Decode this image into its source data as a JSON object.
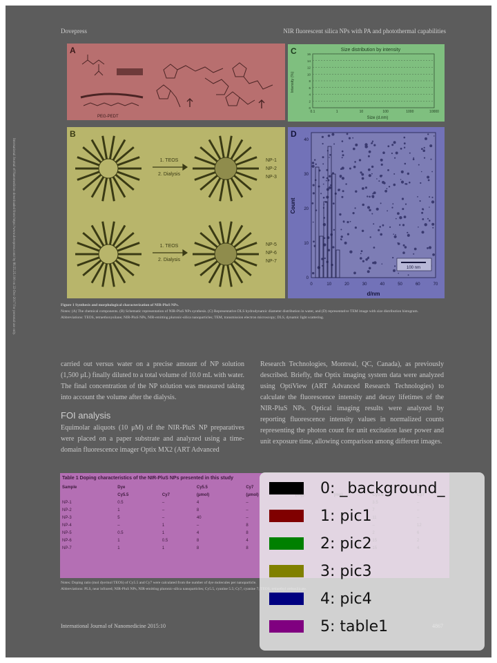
{
  "header": {
    "left": "Dovepress",
    "right": "NIR fluorescent silica NPs with PA and photothermal capabilities"
  },
  "side_note": "International Journal of Nanomedicine downloaded from https://www.dovepress.com/ by 86.55.25.100 on 22-Dec-2017 For personal use only.",
  "figure": {
    "panel_labels": [
      "A",
      "B",
      "C",
      "D"
    ],
    "pic1_text": [
      "PEG-PEDT"
    ],
    "pic2": {
      "title": "Size distribution by intensity",
      "ylabel": "Intensity (%)",
      "xlabel": "Size (d.nm)",
      "x_ticks": [
        "0.1",
        "1",
        "10",
        "100",
        "1000",
        "10000"
      ],
      "y_ticks": [
        "0",
        "2",
        "4",
        "6",
        "8",
        "10",
        "12",
        "14",
        "16"
      ]
    },
    "pic3": {
      "arrow_labels": [
        "1. TEOS",
        "2. Dialysis"
      ],
      "np_top": [
        "NP-1",
        "NP-2",
        "NP-3"
      ],
      "np_bottom": [
        "NP-5",
        "NP-6",
        "NP-7"
      ]
    },
    "pic4": {
      "ylabel": "Count",
      "xlabel": "d/nm",
      "y_ticks": [
        "0",
        "10",
        "20",
        "30",
        "40"
      ],
      "x_ticks": [
        "0",
        "10",
        "20",
        "30",
        "40",
        "50",
        "60",
        "70"
      ],
      "scale_bar": "100 nm"
    },
    "caption_title": "Figure 1 Synthesis and morphological characterization of NIR-PluS NPs.",
    "caption_body": "Notes: (A) The chemical components. (B) Schematic representation of NIR-PluS NPs synthesis. (C) Representative DLS hydrodynamic diameter distribution in water, and (D) representative TEM image with size distribution histogram.",
    "caption_abbrev": "Abbreviations: TEOS, tetraethoxysilane; NIR-PluS NPs, NIR-emitting pluronic-silica nanoparticles; TEM, transmission electron microscopy; DLS, dynamic light scattering."
  },
  "body": {
    "left_para1": "carried out versus water on a precise amount of NP solution (1,500 μL) finally diluted to a total volume of 10.0 mL with water. The final concentration of the NP solution was measured taking into account the volume after the dialysis.",
    "section_heading": "FOI analysis",
    "left_para2": "Equimolar aliquots (10 μM) of the NIR-PluS NP preparatives were placed on a paper substrate and analyzed using a time-domain fluorescence imager Optix MX2 (ART Advanced",
    "right_para": "Research Technologies, Montreal, QC, Canada), as previously described. Briefly, the Optix imaging system data were analyzed using OptiView (ART Advanced Research Technologies) to calculate the fluorescence intensity and decay lifetimes of the NIR-PluS NPs. Optical imaging results were analyzed by reporting fluorescence intensity values in normalized counts representing the photon count for unit excitation laser power and unit exposure time, allowing comparison among different images."
  },
  "table": {
    "title": "Table 1 Doping characteristics of the NIR-PluS NPs presented in this study",
    "group_headers": [
      "Sample",
      "Dye",
      "Cy5.5",
      "Cy7"
    ],
    "columns": [
      "",
      "Cy5.5",
      "Cy7",
      "(μmol)",
      "(μmol)",
      "(mg)",
      "(mg)",
      "Cy5.5",
      "Cy7"
    ],
    "rows": [
      [
        "NP-1",
        "0.5",
        "–",
        "4",
        "–",
        "",
        "",
        "3.5",
        "–"
      ],
      [
        "NP-2",
        "1",
        "–",
        "8",
        "–",
        "",
        "",
        "7",
        "–"
      ],
      [
        "NP-3",
        "5",
        "–",
        "40",
        "–",
        "",
        "",
        "11",
        "–"
      ],
      [
        "NP-4",
        "–",
        "1",
        "–",
        "8",
        "",
        "",
        "–",
        "12"
      ],
      [
        "NP-5",
        "0.5",
        "1",
        "4",
        "8",
        "",
        "",
        "2",
        "6"
      ],
      [
        "NP-6",
        "1",
        "0.5",
        "8",
        "4",
        "",
        "",
        "15",
        "2"
      ],
      [
        "NP-7",
        "1",
        "1",
        "8",
        "8",
        "",
        "",
        "15",
        "4"
      ]
    ],
    "notes": "Notes: Doping ratio (mol dye/mol TEOS) of Cy5.5 and Cy7 were calculated from the number of dye molecules per nanoparticle.",
    "abbrev": "Abbreviations: PLS, near infrared; NIR-PluS NPs, NIR-emitting pluronic-silica nanoparticles; Cy5.5, cyanine 5.5; Cy7, cyanine 7; TEOS, tetraethyl orthosilicate."
  },
  "footer": {
    "left": "International Journal of Nanomedicine 2015:10",
    "right": "4867"
  },
  "legend": {
    "items": [
      {
        "label": "0: _background_",
        "color": "#000000"
      },
      {
        "label": "1: pic1",
        "color": "#800000"
      },
      {
        "label": "2: pic2",
        "color": "#008000"
      },
      {
        "label": "3: pic3",
        "color": "#808000"
      },
      {
        "label": "4: pic4",
        "color": "#000080"
      },
      {
        "label": "5: table1",
        "color": "#800080"
      }
    ]
  }
}
